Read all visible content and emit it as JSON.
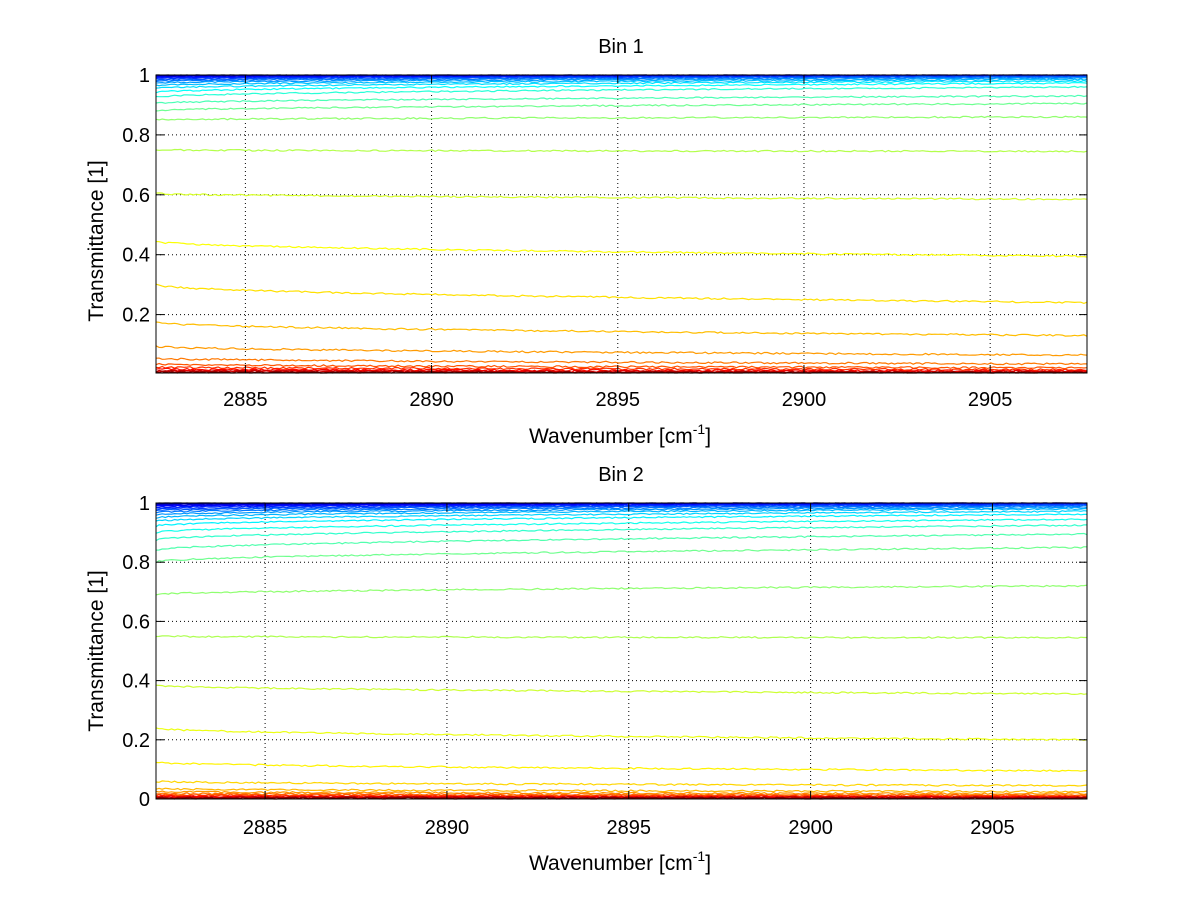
{
  "chart_data": [
    {
      "type": "line",
      "title": "Bin 1",
      "xlabel_base": "Wavenumber [cm",
      "xlabel_sup": "-1",
      "xlabel_end": "]",
      "ylabel": "Transmittance [1]",
      "xlim": [
        2882.6,
        2907.6
      ],
      "ylim": [
        0.005,
        1.0
      ],
      "xticks": [
        2885,
        2890,
        2895,
        2900,
        2905
      ],
      "xtick_labels": [
        "2885",
        "2890",
        "2895",
        "2900",
        "2905"
      ],
      "yticks": [
        0.2,
        0.4,
        0.6,
        0.8,
        1.0
      ],
      "ytick_labels": [
        "0.2",
        "0.4",
        "0.6",
        "0.8",
        "1"
      ],
      "grid": true,
      "colormap": "jet",
      "series_count": 30,
      "series": [
        {
          "name": "s1",
          "start": 1.0,
          "end": 1.0
        },
        {
          "name": "s2",
          "start": 0.998,
          "end": 1.0
        },
        {
          "name": "s3",
          "start": 0.996,
          "end": 0.999
        },
        {
          "name": "s4",
          "start": 0.994,
          "end": 0.998
        },
        {
          "name": "s5",
          "start": 0.991,
          "end": 0.997
        },
        {
          "name": "s6",
          "start": 0.988,
          "end": 0.996
        },
        {
          "name": "s7",
          "start": 0.984,
          "end": 0.994
        },
        {
          "name": "s8",
          "start": 0.979,
          "end": 0.992
        },
        {
          "name": "s9",
          "start": 0.973,
          "end": 0.989
        },
        {
          "name": "s10",
          "start": 0.965,
          "end": 0.985
        },
        {
          "name": "s11",
          "start": 0.955,
          "end": 0.98
        },
        {
          "name": "s12",
          "start": 0.942,
          "end": 0.973
        },
        {
          "name": "s13",
          "start": 0.926,
          "end": 0.96
        },
        {
          "name": "s14",
          "start": 0.905,
          "end": 0.93
        },
        {
          "name": "s15",
          "start": 0.88,
          "end": 0.905
        },
        {
          "name": "s16",
          "start": 0.85,
          "end": 0.86
        },
        {
          "name": "s17",
          "start": 0.75,
          "end": 0.745
        },
        {
          "name": "s18",
          "start": 0.605,
          "end": 0.585
        },
        {
          "name": "s19",
          "start": 0.445,
          "end": 0.395
        },
        {
          "name": "s20",
          "start": 0.3,
          "end": 0.24
        },
        {
          "name": "s21",
          "start": 0.175,
          "end": 0.13
        },
        {
          "name": "s22",
          "start": 0.095,
          "end": 0.065
        },
        {
          "name": "s23",
          "start": 0.055,
          "end": 0.035
        },
        {
          "name": "s24",
          "start": 0.035,
          "end": 0.022
        },
        {
          "name": "s25",
          "start": 0.025,
          "end": 0.016
        },
        {
          "name": "s26",
          "start": 0.018,
          "end": 0.012
        },
        {
          "name": "s27",
          "start": 0.014,
          "end": 0.01
        },
        {
          "name": "s28",
          "start": 0.011,
          "end": 0.008
        },
        {
          "name": "s29",
          "start": 0.009,
          "end": 0.007
        },
        {
          "name": "s30",
          "start": 0.007,
          "end": 0.006
        }
      ]
    },
    {
      "type": "line",
      "title": "Bin 2",
      "xlabel_base": "Wavenumber [cm",
      "xlabel_sup": "-1",
      "xlabel_end": "]",
      "ylabel": "Transmittance [1]",
      "xlim": [
        2882.0,
        2907.6
      ],
      "ylim": [
        0.0,
        1.0
      ],
      "xticks": [
        2885,
        2890,
        2895,
        2900,
        2905
      ],
      "xtick_labels": [
        "2885",
        "2890",
        "2895",
        "2900",
        "2905"
      ],
      "yticks": [
        0.0,
        0.2,
        0.4,
        0.6,
        0.8,
        1.0
      ],
      "ytick_labels": [
        "0",
        "0.2",
        "0.4",
        "0.6",
        "0.8",
        "1"
      ],
      "grid": true,
      "colormap": "jet",
      "series_count": 34,
      "series": [
        {
          "name": "s1",
          "start": 1.0,
          "end": 1.0
        },
        {
          "name": "s2",
          "start": 0.997,
          "end": 1.0
        },
        {
          "name": "s3",
          "start": 0.995,
          "end": 0.999
        },
        {
          "name": "s4",
          "start": 0.992,
          "end": 0.998
        },
        {
          "name": "s5",
          "start": 0.989,
          "end": 0.997
        },
        {
          "name": "s6",
          "start": 0.985,
          "end": 0.996
        },
        {
          "name": "s7",
          "start": 0.98,
          "end": 0.994
        },
        {
          "name": "s8",
          "start": 0.975,
          "end": 0.992
        },
        {
          "name": "s9",
          "start": 0.968,
          "end": 0.989
        },
        {
          "name": "s10",
          "start": 0.96,
          "end": 0.985
        },
        {
          "name": "s11",
          "start": 0.95,
          "end": 0.98
        },
        {
          "name": "s12",
          "start": 0.938,
          "end": 0.972
        },
        {
          "name": "s13",
          "start": 0.922,
          "end": 0.962
        },
        {
          "name": "s14",
          "start": 0.9,
          "end": 0.945
        },
        {
          "name": "s15",
          "start": 0.875,
          "end": 0.925
        },
        {
          "name": "s16",
          "start": 0.84,
          "end": 0.895
        },
        {
          "name": "s17",
          "start": 0.8,
          "end": 0.85
        },
        {
          "name": "s18",
          "start": 0.69,
          "end": 0.72
        },
        {
          "name": "s19",
          "start": 0.55,
          "end": 0.545
        },
        {
          "name": "s20",
          "start": 0.385,
          "end": 0.355
        },
        {
          "name": "s21",
          "start": 0.24,
          "end": 0.2
        },
        {
          "name": "s22",
          "start": 0.125,
          "end": 0.095
        },
        {
          "name": "s23",
          "start": 0.06,
          "end": 0.045
        },
        {
          "name": "s24",
          "start": 0.035,
          "end": 0.025
        },
        {
          "name": "s25",
          "start": 0.025,
          "end": 0.018
        },
        {
          "name": "s26",
          "start": 0.019,
          "end": 0.014
        },
        {
          "name": "s27",
          "start": 0.015,
          "end": 0.011
        },
        {
          "name": "s28",
          "start": 0.012,
          "end": 0.009
        },
        {
          "name": "s29",
          "start": 0.01,
          "end": 0.007
        },
        {
          "name": "s30",
          "start": 0.008,
          "end": 0.006
        },
        {
          "name": "s31",
          "start": 0.006,
          "end": 0.005
        },
        {
          "name": "s32",
          "start": 0.005,
          "end": 0.004
        },
        {
          "name": "s33",
          "start": 0.004,
          "end": 0.003
        },
        {
          "name": "s34",
          "start": 0.003,
          "end": 0.002
        }
      ]
    }
  ]
}
